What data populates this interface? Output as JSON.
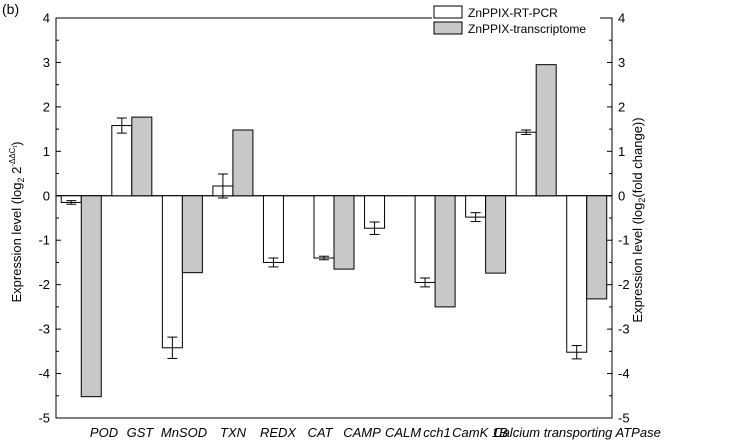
{
  "panel_label": "(b)",
  "chart_data": {
    "type": "bar",
    "title": "",
    "categories": [
      "POD",
      "GST",
      "MnSOD",
      "TXN",
      "REDX",
      "CAT",
      "CAMP",
      "CALM",
      "cch1",
      "CamK 1B",
      "Calcium transporting ATPase"
    ],
    "series": [
      {
        "name": "ZnPPIX-RT-PCR",
        "color": "#ffffff",
        "values": [
          -0.15,
          1.58,
          -3.42,
          0.22,
          -1.5,
          -1.4,
          -0.73,
          -1.95,
          -0.48,
          1.43,
          -3.52
        ],
        "errors": [
          0.04,
          0.17,
          0.24,
          0.27,
          0.1,
          0.04,
          0.14,
          0.1,
          0.1,
          0.05,
          0.15
        ]
      },
      {
        "name": "ZnPPIX-transcriptome",
        "color": "#c8c8c8",
        "values": [
          -4.52,
          1.77,
          -1.73,
          1.48,
          null,
          -1.65,
          null,
          -2.5,
          -1.74,
          2.95,
          -2.32
        ]
      }
    ],
    "ylim": [
      -5,
      4
    ],
    "yticks": [
      "-5",
      "-4",
      "-3",
      "-2",
      "-1",
      "0",
      "1",
      "2",
      "3",
      "4"
    ],
    "ylabel_left": {
      "main": "Expression level (log",
      "sub": "2",
      "mid": " 2",
      "sup": "-ΔΔC",
      "supsub": "t",
      "end": ")"
    },
    "ylabel_right": {
      "main": "Expression level (log",
      "sub": "2",
      "end": "(fold change))"
    },
    "legend_position": "top-right",
    "grid": false
  }
}
